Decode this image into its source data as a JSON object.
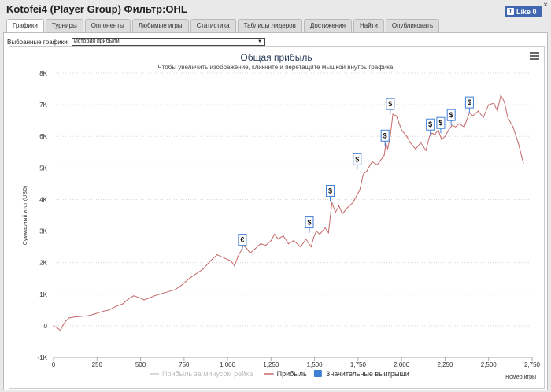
{
  "window": {
    "title": "Kotofei4 (Player Group) Фильтр:OHL",
    "close_label": "×",
    "fb_like_label": "Like 0"
  },
  "tabs": [
    {
      "label": "Графики",
      "active": true
    },
    {
      "label": "Турниры"
    },
    {
      "label": "Оппоненты"
    },
    {
      "label": "Любимые игры"
    },
    {
      "label": "Статистика"
    },
    {
      "label": "Таблицы лидеров"
    },
    {
      "label": "Достижения"
    },
    {
      "label": "Найти"
    },
    {
      "label": "Опубликовать"
    }
  ],
  "selector": {
    "label": "Выбранные графики:",
    "value": "История прибыли"
  },
  "chart_data": {
    "type": "line",
    "title": "Общая прибыль",
    "subtitle": "Чтобы увеличить изображение, кликните и перетащите мышкой внутрь графика.",
    "xlabel": "Номер игры",
    "ylabel": "Суммарный итог (USD)",
    "xlim": [
      0,
      2750
    ],
    "ylim": [
      -1000,
      8000
    ],
    "x_ticks": [
      "0",
      "250",
      "500",
      "750",
      "1,000",
      "1,250",
      "1,500",
      "1,750",
      "2,000",
      "2,250",
      "2,500",
      "2,750"
    ],
    "y_ticks": [
      "-1K",
      "0",
      "1K",
      "2K",
      "3K",
      "4K",
      "5K",
      "6K",
      "7K",
      "8K"
    ],
    "grid": true,
    "line_color": "#c46a6a",
    "series": [
      {
        "name": "Прибыль",
        "x": [
          0,
          25,
          40,
          55,
          70,
          90,
          120,
          160,
          200,
          240,
          280,
          320,
          360,
          400,
          430,
          460,
          490,
          520,
          550,
          580,
          610,
          640,
          670,
          700,
          740,
          780,
          820,
          860,
          900,
          940,
          980,
          1020,
          1040,
          1060,
          1080,
          1090,
          1110,
          1130,
          1160,
          1190,
          1220,
          1250,
          1270,
          1290,
          1320,
          1350,
          1380,
          1420,
          1450,
          1480,
          1495,
          1510,
          1530,
          1560,
          1580,
          1600,
          1620,
          1640,
          1660,
          1690,
          1720,
          1740,
          1760,
          1780,
          1800,
          1830,
          1860,
          1880,
          1900,
          1910,
          1920,
          1935,
          1950,
          1970,
          2000,
          2030,
          2050,
          2080,
          2110,
          2140,
          2160,
          2175,
          2190,
          2210,
          2230,
          2250,
          2270,
          2290,
          2310,
          2330,
          2360,
          2390,
          2410,
          2440,
          2470,
          2500,
          2530,
          2550,
          2570,
          2590,
          2610,
          2640,
          2670,
          2700
        ],
        "y": [
          0,
          -80,
          -150,
          30,
          150,
          250,
          280,
          300,
          320,
          380,
          450,
          500,
          620,
          700,
          850,
          950,
          900,
          820,
          880,
          950,
          1000,
          1050,
          1100,
          1150,
          1300,
          1500,
          1650,
          1800,
          2050,
          2250,
          2150,
          2050,
          1900,
          2200,
          2400,
          2550,
          2450,
          2300,
          2450,
          2600,
          2550,
          2700,
          2900,
          2750,
          2850,
          2600,
          2700,
          2500,
          2750,
          2500,
          2800,
          3000,
          2900,
          3100,
          2950,
          3900,
          3600,
          3800,
          3550,
          3750,
          3900,
          4100,
          4300,
          4800,
          4900,
          5200,
          5100,
          5250,
          5400,
          5800,
          5600,
          6000,
          6700,
          6650,
          6200,
          6000,
          5800,
          5600,
          5800,
          5550,
          6000,
          6100,
          6050,
          6200,
          5900,
          6000,
          6200,
          6350,
          6300,
          6400,
          6300,
          6750,
          6650,
          6800,
          6600,
          7000,
          7050,
          6800,
          7300,
          7100,
          6600,
          6300,
          5800,
          5150
        ]
      },
      {
        "name": "Прибыль за минусом рейка",
        "x": [],
        "y": []
      }
    ],
    "markers": [
      {
        "symbol": "€",
        "x": 1085,
        "y": 2400
      },
      {
        "symbol": "$",
        "x": 1470,
        "y": 2950
      },
      {
        "symbol": "$",
        "x": 1590,
        "y": 3950
      },
      {
        "symbol": "$",
        "x": 1745,
        "y": 4950
      },
      {
        "symbol": "$",
        "x": 1905,
        "y": 5700
      },
      {
        "symbol": "$",
        "x": 1935,
        "y": 6700
      },
      {
        "symbol": "$",
        "x": 2165,
        "y": 6050
      },
      {
        "symbol": "$",
        "x": 2225,
        "y": 6100
      },
      {
        "symbol": "$",
        "x": 2285,
        "y": 6350
      },
      {
        "symbol": "$",
        "x": 2390,
        "y": 6750
      }
    ],
    "legend": [
      {
        "label": "Прибыль за минусом рейка",
        "color": "#cccccc",
        "kind": "line"
      },
      {
        "label": "Прибыль",
        "color": "#c46a6a",
        "kind": "line"
      },
      {
        "label": "Значительные выигрыши",
        "color": "#3f7fd6",
        "kind": "box"
      }
    ],
    "legend_placement": "bottom"
  }
}
